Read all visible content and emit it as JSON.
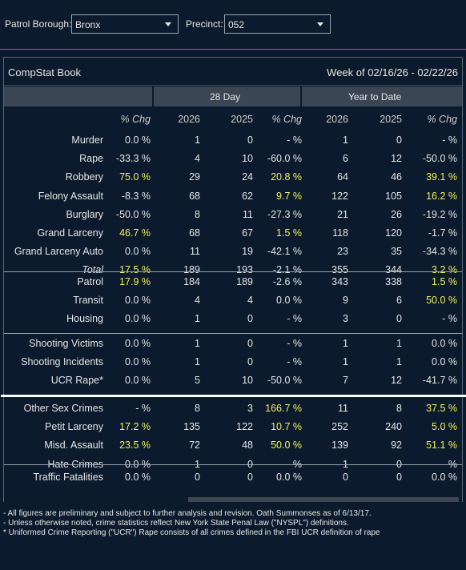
{
  "filters": {
    "borough_label": "Patrol Borough:",
    "borough_value": "Bronx",
    "precinct_label": "Precinct:",
    "precinct_value": "052"
  },
  "panel": {
    "title": "CompStat Book",
    "week": "Week of 02/16/26 - 02/22/26",
    "group_28": "28 Day",
    "group_ytd": "Year to Date"
  },
  "header": [
    "% Chg",
    "2026",
    "2025",
    "% Chg",
    "2026",
    "2025",
    "% Chg"
  ],
  "sections": [
    {
      "rows": [
        {
          "label": "Murder",
          "c": [
            "0.0 %",
            "1",
            "0",
            "- %",
            "1",
            "0",
            "- %"
          ],
          "y": [
            false,
            false,
            false,
            false,
            false,
            false,
            false
          ]
        },
        {
          "label": "Rape",
          "c": [
            "-33.3 %",
            "4",
            "10",
            "-60.0 %",
            "6",
            "12",
            "-50.0 %"
          ],
          "y": [
            false,
            false,
            false,
            false,
            false,
            false,
            false
          ]
        },
        {
          "label": "Robbery",
          "c": [
            "75.0 %",
            "29",
            "24",
            "20.8 %",
            "64",
            "46",
            "39.1 %"
          ],
          "y": [
            true,
            false,
            false,
            true,
            false,
            false,
            true
          ]
        },
        {
          "label": "Felony Assault",
          "c": [
            "-8.3 %",
            "68",
            "62",
            "9.7 %",
            "122",
            "105",
            "16.2 %"
          ],
          "y": [
            false,
            false,
            false,
            true,
            false,
            false,
            true
          ]
        },
        {
          "label": "Burglary",
          "c": [
            "-50.0 %",
            "8",
            "11",
            "-27.3 %",
            "21",
            "26",
            "-19.2 %"
          ],
          "y": [
            false,
            false,
            false,
            false,
            false,
            false,
            false
          ]
        },
        {
          "label": "Grand Larceny",
          "c": [
            "46.7 %",
            "68",
            "67",
            "1.5 %",
            "118",
            "120",
            "-1.7 %"
          ],
          "y": [
            true,
            false,
            false,
            true,
            false,
            false,
            false
          ]
        },
        {
          "label": "Grand Larceny Auto",
          "c": [
            "0.0 %",
            "11",
            "19",
            "-42.1 %",
            "23",
            "35",
            "-34.3 %"
          ],
          "y": [
            false,
            false,
            false,
            false,
            false,
            false,
            false
          ]
        },
        {
          "label": "Total",
          "c": [
            "17.5 %",
            "189",
            "193",
            "-2.1 %",
            "355",
            "344",
            "3.2 %"
          ],
          "y": [
            true,
            false,
            false,
            false,
            false,
            false,
            true
          ],
          "total": true
        }
      ]
    },
    {
      "rows": [
        {
          "label": "Patrol",
          "c": [
            "17.9 %",
            "184",
            "189",
            "-2.6 %",
            "343",
            "338",
            "1.5 %"
          ],
          "y": [
            true,
            false,
            false,
            false,
            false,
            false,
            true
          ]
        },
        {
          "label": "Transit",
          "c": [
            "0.0 %",
            "4",
            "4",
            "0.0 %",
            "9",
            "6",
            "50.0 %"
          ],
          "y": [
            false,
            false,
            false,
            false,
            false,
            false,
            true
          ]
        },
        {
          "label": "Housing",
          "c": [
            "0.0 %",
            "1",
            "0",
            "- %",
            "3",
            "0",
            "- %"
          ],
          "y": [
            false,
            false,
            false,
            false,
            false,
            false,
            false
          ]
        }
      ]
    },
    {
      "rows": [
        {
          "label": "Shooting Victims",
          "c": [
            "0.0 %",
            "1",
            "0",
            "- %",
            "1",
            "1",
            "0.0 %"
          ],
          "y": [
            false,
            false,
            false,
            false,
            false,
            false,
            false
          ]
        },
        {
          "label": "Shooting Incidents",
          "c": [
            "0.0 %",
            "1",
            "0",
            "- %",
            "1",
            "1",
            "0.0 %"
          ],
          "y": [
            false,
            false,
            false,
            false,
            false,
            false,
            false
          ]
        },
        {
          "label": "UCR Rape*",
          "c": [
            "0.0 %",
            "5",
            "10",
            "-50.0 %",
            "7",
            "12",
            "-41.7 %"
          ],
          "y": [
            false,
            false,
            false,
            false,
            false,
            false,
            false
          ]
        }
      ]
    },
    {
      "rows": [
        {
          "label": "Other Sex Crimes",
          "c": [
            "- %",
            "8",
            "3",
            "166.7 %",
            "11",
            "8",
            "37.5 %"
          ],
          "y": [
            false,
            false,
            false,
            true,
            false,
            false,
            true
          ]
        },
        {
          "label": "Petit Larceny",
          "c": [
            "17.2 %",
            "135",
            "122",
            "10.7 %",
            "252",
            "240",
            "5.0 %"
          ],
          "y": [
            true,
            false,
            false,
            true,
            false,
            false,
            true
          ]
        },
        {
          "label": "Misd. Assault",
          "c": [
            "23.5 %",
            "72",
            "48",
            "50.0 %",
            "139",
            "92",
            "51.1 %"
          ],
          "y": [
            true,
            false,
            false,
            true,
            false,
            false,
            true
          ]
        },
        {
          "label": "Hate Crimes",
          "c": [
            "0.0 %",
            "1",
            "0",
            "- %",
            "1",
            "0",
            "- %"
          ],
          "y": [
            false,
            false,
            false,
            false,
            false,
            false,
            false
          ]
        }
      ]
    },
    {
      "rows": [
        {
          "label": "Traffic Fatalities",
          "c": [
            "0.0 %",
            "0",
            "0",
            "0.0 %",
            "0",
            "0",
            "0.0 %"
          ],
          "y": [
            false,
            false,
            false,
            false,
            false,
            false,
            false
          ]
        }
      ]
    }
  ],
  "notes": [
    "- All figures are preliminary and subject to further analysis and revision. Oath Summonses as of 6/13/17.",
    "- Unless otherwise noted, crime statistics reflect New York State Penal Law (\"NYSPL\") definitions.",
    "* Uniformed Crime Reporting (\"UCR\") Rape consists of all crimes defined in the FBI UCR definition of rape"
  ],
  "colors": {
    "highlight": "#f2f25a",
    "background": "#0b1a2c",
    "group_header": "#3a4654"
  }
}
